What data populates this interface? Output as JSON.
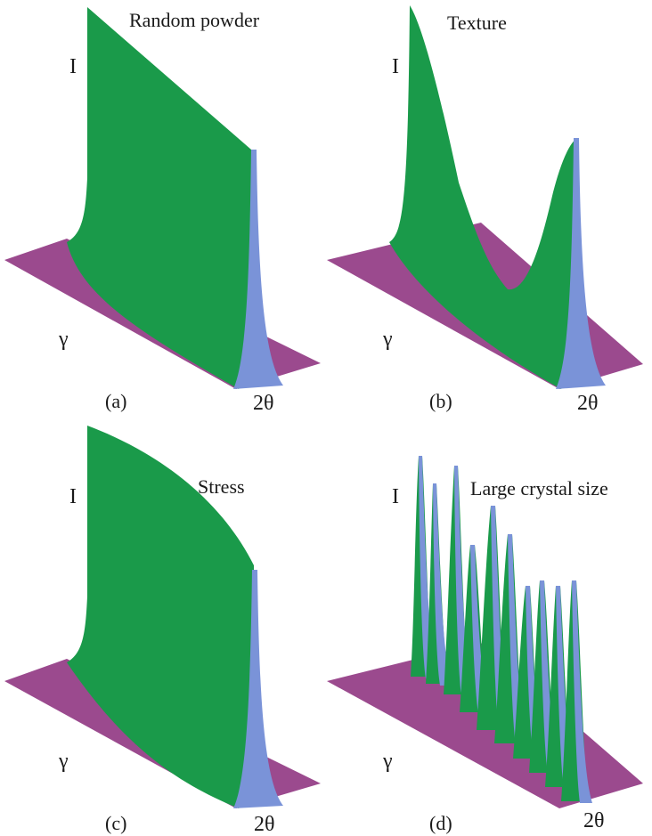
{
  "colors": {
    "plane": "#9b4a8e",
    "surface": "#1a9a4a",
    "peak_edge": "#7a93d8",
    "text": "#1a1a1a"
  },
  "panels": [
    {
      "letter": "(a)",
      "title": "Random powder",
      "i_label": "I",
      "gamma_label": "γ",
      "two_theta_label": "2θ"
    },
    {
      "letter": "(b)",
      "title": "Texture",
      "i_label": "I",
      "gamma_label": "γ",
      "two_theta_label": "2θ"
    },
    {
      "letter": "(c)",
      "title": "Stress",
      "i_label": "I",
      "gamma_label": "γ",
      "two_theta_label": "2θ"
    },
    {
      "letter": "(d)",
      "title": "Large crystal size",
      "i_label": "I",
      "gamma_label": "γ",
      "two_theta_label": "2θ"
    }
  ]
}
